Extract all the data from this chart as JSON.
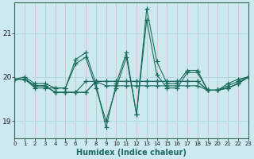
{
  "title": "",
  "xlabel": "Humidex (Indice chaleur)",
  "bg_color": "#cce9f0",
  "grid_color_h": "#b0d8e0",
  "grid_color_v": "#ddb8b8",
  "line_color": "#1a6b5a",
  "xlim": [
    0,
    23
  ],
  "ylim": [
    18.6,
    21.7
  ],
  "yticks": [
    19,
    20,
    21
  ],
  "xticks": [
    0,
    1,
    2,
    3,
    4,
    5,
    6,
    7,
    8,
    9,
    10,
    11,
    12,
    13,
    14,
    15,
    16,
    17,
    18,
    19,
    20,
    21,
    22,
    23
  ],
  "series": [
    [
      19.95,
      20.0,
      19.85,
      19.85,
      19.75,
      19.75,
      20.4,
      20.55,
      19.85,
      18.85,
      19.85,
      20.55,
      19.15,
      21.55,
      20.35,
      19.85,
      19.85,
      20.15,
      20.15,
      19.7,
      19.7,
      19.85,
      19.95,
      20.0
    ],
    [
      19.95,
      19.95,
      19.75,
      19.75,
      19.75,
      19.75,
      20.3,
      20.45,
      19.75,
      19.0,
      19.75,
      20.45,
      19.15,
      21.3,
      20.05,
      19.75,
      19.75,
      20.1,
      20.1,
      19.7,
      19.7,
      19.8,
      19.9,
      20.0
    ],
    [
      19.95,
      19.95,
      19.8,
      19.8,
      19.65,
      19.65,
      19.65,
      19.9,
      19.9,
      19.8,
      19.8,
      19.8,
      19.8,
      19.8,
      19.8,
      19.8,
      19.8,
      19.8,
      19.8,
      19.7,
      19.7,
      19.75,
      19.85,
      20.0
    ],
    [
      19.95,
      19.95,
      19.8,
      19.8,
      19.65,
      19.65,
      19.65,
      19.65,
      19.9,
      19.9,
      19.9,
      19.9,
      19.9,
      19.9,
      19.9,
      19.9,
      19.9,
      19.9,
      19.9,
      19.7,
      19.7,
      19.75,
      19.85,
      20.0
    ],
    [
      19.95,
      19.95,
      19.8,
      19.8,
      19.65,
      19.65,
      19.65,
      19.65,
      19.9,
      19.9,
      19.9,
      19.9,
      19.9,
      19.9,
      19.9,
      19.9,
      19.9,
      19.9,
      19.9,
      19.7,
      19.7,
      19.75,
      19.85,
      20.0
    ]
  ],
  "marker": "+",
  "markersize": 4,
  "linewidth": 0.8,
  "xlabel_color": "#1a6b5a",
  "xlabel_fontsize": 7,
  "tick_fontsize": 6,
  "ylabel_fontsize": 7
}
